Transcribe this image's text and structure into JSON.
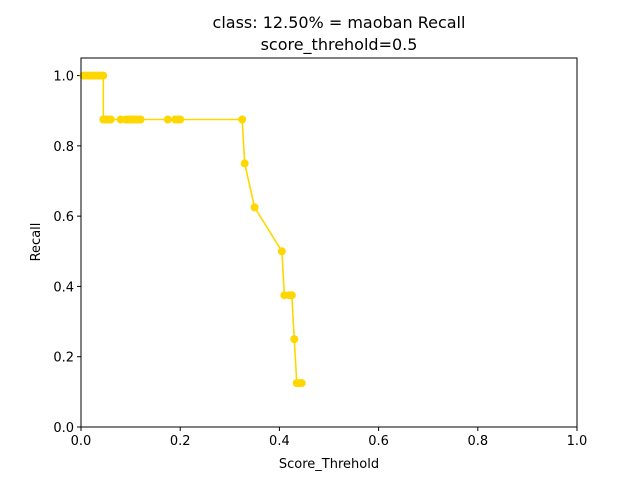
{
  "chart_data": {
    "type": "line",
    "title": "class: 12.50% = maoban Recall",
    "subtitle": "score_threhold=0.5",
    "xlabel": "Score_Threhold",
    "ylabel": "Recall",
    "xlim": [
      0.0,
      1.0
    ],
    "ylim": [
      0.0,
      1.05
    ],
    "xticks": [
      "0.0",
      "0.2",
      "0.4",
      "0.6",
      "0.8",
      "1.0"
    ],
    "yticks": [
      "0.0",
      "0.2",
      "0.4",
      "0.6",
      "0.8",
      "1.0"
    ],
    "grid": false,
    "color": "#FFD700",
    "series": [
      {
        "x": [
          0.005,
          0.01,
          0.015,
          0.02,
          0.025,
          0.03,
          0.035,
          0.04,
          0.045,
          0.045,
          0.05,
          0.055,
          0.06,
          0.08,
          0.09,
          0.095,
          0.1,
          0.105,
          0.11,
          0.115,
          0.12,
          0.175,
          0.19,
          0.195,
          0.2,
          0.325,
          0.33,
          0.35,
          0.405,
          0.41,
          0.42,
          0.425,
          0.43,
          0.435,
          0.44,
          0.445
        ],
        "y": [
          1.0,
          1.0,
          1.0,
          1.0,
          1.0,
          1.0,
          1.0,
          1.0,
          1.0,
          0.875,
          0.875,
          0.875,
          0.875,
          0.875,
          0.875,
          0.875,
          0.875,
          0.875,
          0.875,
          0.875,
          0.875,
          0.875,
          0.875,
          0.875,
          0.875,
          0.875,
          0.75,
          0.625,
          0.5,
          0.375,
          0.375,
          0.375,
          0.25,
          0.125,
          0.125,
          0.125
        ]
      }
    ]
  }
}
